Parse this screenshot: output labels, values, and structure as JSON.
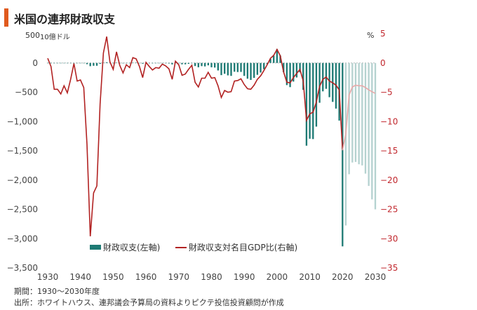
{
  "title": "米国の連邦財政収支",
  "left_unit": "10億ドル",
  "right_unit": "%",
  "notes": {
    "period": "期間：1930～2030年度",
    "source": "出所：ホワイトハウス、連邦議会予算局の資料よりピクテ投信投資顧問が作成"
  },
  "colors": {
    "bar_actual": "#1e7a74",
    "bar_forecast": "#b5d2d0",
    "line_actual": "#b22222",
    "line_forecast": "#e8a8a8",
    "title_accent": "#e05a1e"
  },
  "chart_data": {
    "type": "bar+line",
    "y_left": {
      "min": -3500,
      "max": 500,
      "ticks": [
        500,
        0,
        -500,
        -1000,
        -1500,
        -2000,
        -2500,
        -3000,
        -3500
      ],
      "tick_labels": [
        "500",
        "0",
        "−500",
        "−1,000",
        "−1,500",
        "−2,000",
        "−2,500",
        "−3,000",
        "−3,500"
      ]
    },
    "y_right": {
      "min": -35,
      "max": 5,
      "ticks": [
        5,
        0,
        -5,
        -10,
        -15,
        -20,
        -25,
        -30,
        -35
      ],
      "tick_labels": [
        "5",
        "0",
        "−5",
        "−10",
        "−15",
        "−20",
        "−25",
        "−30",
        "−35"
      ]
    },
    "x": {
      "min": 1930,
      "max": 2030,
      "ticks": [
        1930,
        1940,
        1950,
        1960,
        1970,
        1980,
        1990,
        2000,
        2010,
        2020,
        2030
      ]
    },
    "forecast_start": 2021,
    "legend": [
      "財政収支(左軸)",
      "財政収支対名目GDP比(右軸)"
    ],
    "series": [
      {
        "name": "財政収支(左軸)",
        "kind": "bar",
        "years": [
          1930,
          1931,
          1932,
          1933,
          1934,
          1935,
          1936,
          1937,
          1938,
          1939,
          1940,
          1941,
          1942,
          1943,
          1944,
          1945,
          1946,
          1947,
          1948,
          1949,
          1950,
          1951,
          1952,
          1953,
          1954,
          1955,
          1956,
          1957,
          1958,
          1959,
          1960,
          1961,
          1962,
          1963,
          1964,
          1965,
          1966,
          1967,
          1968,
          1969,
          1970,
          1971,
          1972,
          1973,
          1974,
          1975,
          1976,
          1977,
          1978,
          1979,
          1980,
          1981,
          1982,
          1983,
          1984,
          1985,
          1986,
          1987,
          1988,
          1989,
          1990,
          1991,
          1992,
          1993,
          1994,
          1995,
          1996,
          1997,
          1998,
          1999,
          2000,
          2001,
          2002,
          2003,
          2004,
          2005,
          2006,
          2007,
          2008,
          2009,
          2010,
          2011,
          2012,
          2013,
          2014,
          2015,
          2016,
          2017,
          2018,
          2019,
          2020,
          2021,
          2022,
          2023,
          2024,
          2025,
          2026,
          2027,
          2028,
          2029,
          2030
        ],
        "values": [
          1,
          -3,
          -3,
          -3,
          -4,
          -3,
          -4,
          -3,
          0,
          -3,
          -3,
          -5,
          -21,
          -55,
          -48,
          -48,
          -16,
          4,
          12,
          1,
          -3,
          6,
          -2,
          -7,
          -1,
          -3,
          4,
          3,
          -3,
          -13,
          0,
          -3,
          -7,
          -5,
          -6,
          -1,
          -4,
          -9,
          -25,
          3,
          -3,
          -23,
          -23,
          -15,
          -6,
          -53,
          -74,
          -54,
          -59,
          -41,
          -74,
          -79,
          -128,
          -208,
          -185,
          -212,
          -221,
          -150,
          -155,
          -153,
          -221,
          -269,
          -290,
          -255,
          -203,
          -164,
          -107,
          -22,
          69,
          126,
          236,
          128,
          -158,
          -378,
          -413,
          -318,
          -248,
          -161,
          -459,
          -1413,
          -1294,
          -1300,
          -1087,
          -680,
          -485,
          -442,
          -585,
          -665,
          -779,
          -984,
          -3132,
          -2775,
          -1900,
          -1700,
          -1690,
          -1730,
          -1750,
          -1890,
          -2100,
          -2330,
          -2500
        ]
      },
      {
        "name": "財政収支対名目GDP比(右軸)",
        "kind": "line",
        "years": [
          1930,
          1931,
          1932,
          1933,
          1934,
          1935,
          1936,
          1937,
          1938,
          1939,
          1940,
          1941,
          1942,
          1943,
          1944,
          1945,
          1946,
          1947,
          1948,
          1949,
          1950,
          1951,
          1952,
          1953,
          1954,
          1955,
          1956,
          1957,
          1958,
          1959,
          1960,
          1961,
          1962,
          1963,
          1964,
          1965,
          1966,
          1967,
          1968,
          1969,
          1970,
          1971,
          1972,
          1973,
          1974,
          1975,
          1976,
          1977,
          1978,
          1979,
          1980,
          1981,
          1982,
          1983,
          1984,
          1985,
          1986,
          1987,
          1988,
          1989,
          1990,
          1991,
          1992,
          1993,
          1994,
          1995,
          1996,
          1997,
          1998,
          1999,
          2000,
          2001,
          2002,
          2003,
          2004,
          2005,
          2006,
          2007,
          2008,
          2009,
          2010,
          2011,
          2012,
          2013,
          2014,
          2015,
          2016,
          2017,
          2018,
          2019,
          2020,
          2021,
          2022,
          2023,
          2024,
          2025,
          2026,
          2027,
          2028,
          2029,
          2030
        ],
        "values": [
          0.8,
          -0.6,
          -4.5,
          -4.5,
          -5.3,
          -3.9,
          -5.1,
          -2.8,
          -0.1,
          -3.1,
          -2.9,
          -4.2,
          -13.9,
          -29.6,
          -22.2,
          -21.0,
          -7.0,
          1.7,
          4.5,
          0.2,
          -1.1,
          1.9,
          -0.4,
          -1.7,
          -0.3,
          -0.8,
          0.9,
          0.7,
          -0.6,
          -2.5,
          0.1,
          -0.6,
          -1.2,
          -0.8,
          -0.9,
          -0.2,
          -0.5,
          -1.0,
          -2.8,
          0.3,
          -0.3,
          -2.1,
          -1.9,
          -1.1,
          -0.4,
          -3.3,
          -4.1,
          -2.6,
          -2.6,
          -1.6,
          -2.6,
          -2.5,
          -3.9,
          -5.9,
          -4.7,
          -5.0,
          -4.9,
          -3.1,
          -3.0,
          -2.7,
          -3.7,
          -4.4,
          -4.5,
          -3.8,
          -2.8,
          -2.2,
          -1.3,
          -0.3,
          0.8,
          1.3,
          2.3,
          1.2,
          -1.5,
          -3.3,
          -3.4,
          -2.5,
          -1.8,
          -1.1,
          -3.1,
          -9.8,
          -8.7,
          -8.4,
          -6.7,
          -4.0,
          -2.8,
          -2.4,
          -3.1,
          -3.4,
          -3.8,
          -4.6,
          -14.9,
          -12.1,
          -5.5,
          -4.1,
          -3.8,
          -3.9,
          -3.9,
          -4.2,
          -4.6,
          -4.9,
          -5.2
        ]
      }
    ]
  }
}
